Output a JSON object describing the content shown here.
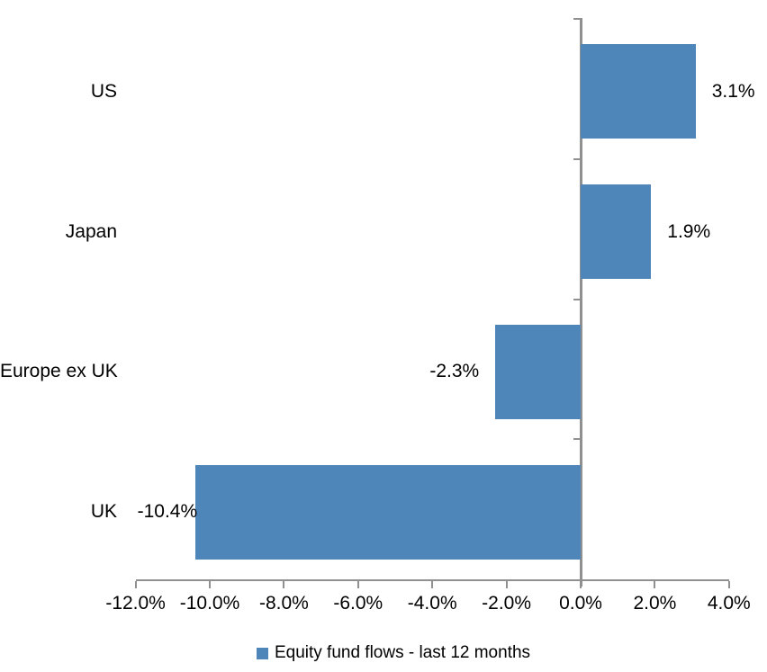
{
  "chart_data": {
    "type": "bar",
    "orientation": "horizontal",
    "title": "",
    "categories": [
      "US",
      "Japan",
      "Europe ex UK",
      "UK"
    ],
    "values": [
      3.1,
      1.9,
      -2.3,
      -10.4
    ],
    "value_labels": [
      "3.1%",
      "1.9%",
      "-2.3%",
      "-10.4%"
    ],
    "series_name": "Equity fund flows - last 12 months",
    "x_tick_labels": [
      "-12.0%",
      "-10.0%",
      "-8.0%",
      "-6.0%",
      "-4.0%",
      "-2.0%",
      "0.0%",
      "2.0%",
      "4.0%"
    ],
    "x_tick_values": [
      -12,
      -10,
      -8,
      -6,
      -4,
      -2,
      0,
      2,
      4
    ],
    "xlim": [
      -12,
      4
    ],
    "grid": false,
    "legend_position": "bottom",
    "colors": {
      "bar": "#4E86BA",
      "axis": "#909090",
      "text": "#000000",
      "background": "#FFFFFF"
    }
  },
  "legend": {
    "label": "Equity fund flows - last 12 months"
  }
}
